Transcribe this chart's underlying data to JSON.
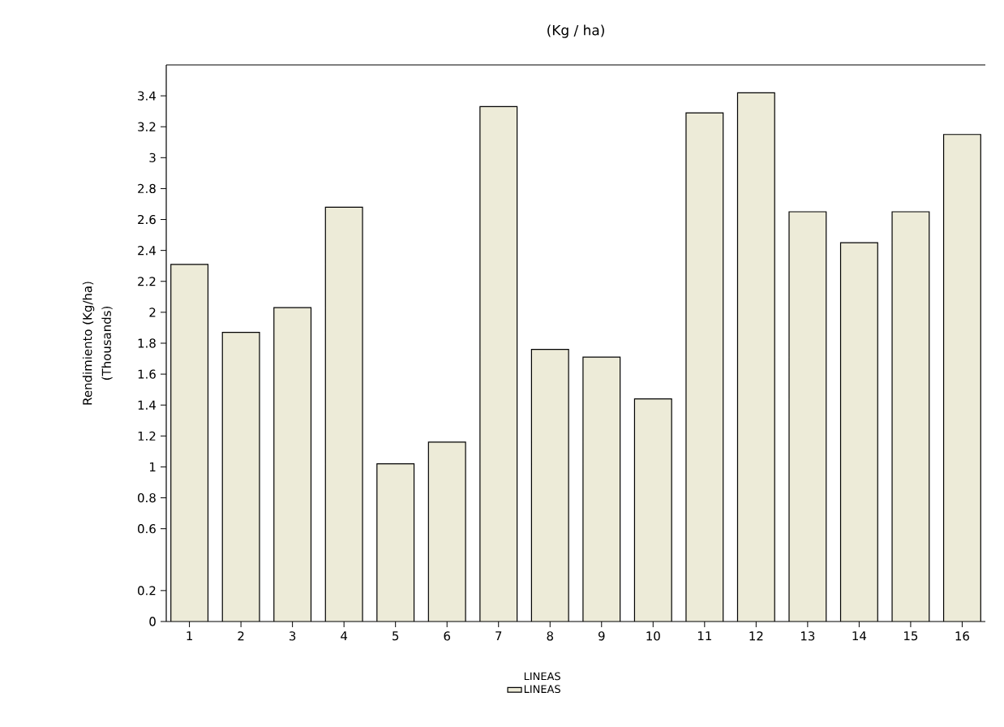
{
  "chart_data": {
    "type": "bar",
    "title": "(Kg / ha)",
    "ylabel": "Rendimiento (Kg/ha)",
    "annotations": [
      "(Thousands)"
    ],
    "legend_title": "LINEAS",
    "legend": "bottom",
    "categories": [
      "1",
      "2",
      "3",
      "4",
      "5",
      "6",
      "7",
      "8",
      "9",
      "10",
      "11",
      "12",
      "13",
      "14",
      "15",
      "16"
    ],
    "series": [
      {
        "name": "LINEAS",
        "color": "#edebd8",
        "values": [
          2.31,
          1.87,
          2.03,
          2.68,
          1.02,
          1.16,
          3.33,
          1.76,
          1.71,
          1.44,
          3.29,
          3.42,
          2.65,
          2.45,
          2.65,
          3.15
        ]
      }
    ],
    "ylim": [
      0,
      3.6
    ],
    "yticks": [
      0,
      0.2,
      0.6,
      0.8,
      1,
      1.2,
      1.4,
      1.6,
      1.8,
      2,
      2.2,
      2.4,
      2.6,
      2.8,
      3,
      3.2,
      3.4
    ]
  }
}
